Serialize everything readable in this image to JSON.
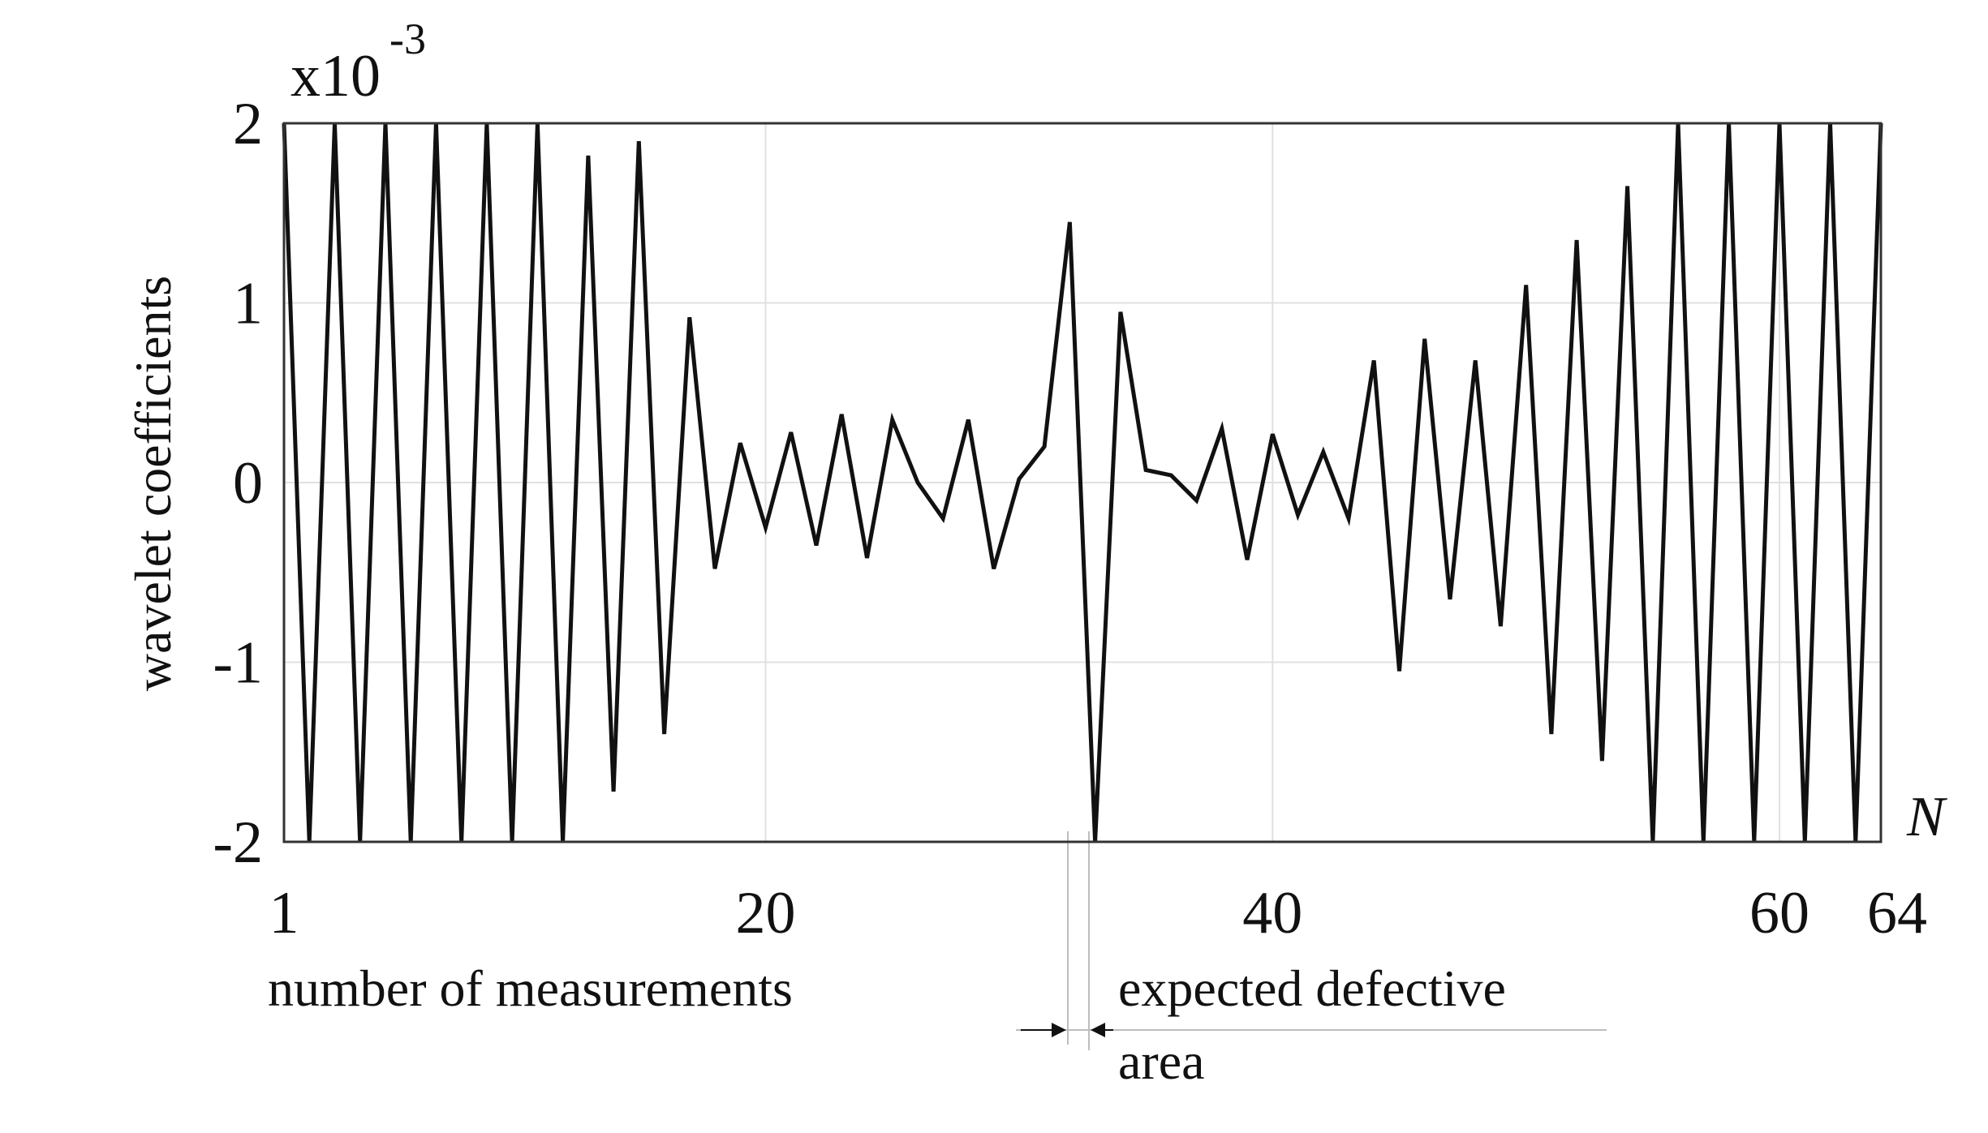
{
  "chart_data": {
    "type": "line",
    "scale_label": "x10",
    "scale_exponent": "-3",
    "ylabel": "wavelet coefficients",
    "xlabel": "number of measurements",
    "x_axis_symbol": "N",
    "annotation": [
      "expected defective",
      "area"
    ],
    "xlim": [
      1,
      64
    ],
    "ylim": [
      -2,
      2
    ],
    "x_ticks": [
      "1",
      "20",
      "40",
      "60",
      "64"
    ],
    "y_ticks": [
      "2",
      "1",
      "0",
      "-1",
      "-2"
    ],
    "grid": true,
    "series_color": "#111111",
    "series": [
      {
        "x": [
          1,
          2,
          3,
          4,
          5,
          6,
          7,
          8,
          9,
          10,
          11,
          12,
          13,
          14,
          15,
          16,
          17,
          18,
          19,
          20,
          21,
          22,
          23,
          24,
          25,
          26,
          27,
          28,
          29,
          30,
          31,
          32,
          33,
          34,
          35,
          36,
          37,
          38,
          39,
          40,
          41,
          42,
          43,
          44,
          45,
          46,
          47,
          48,
          49,
          50,
          51,
          52,
          53,
          54,
          55,
          56,
          57,
          58,
          59,
          60,
          61,
          62,
          63,
          64
        ],
        "values": [
          2,
          -2,
          2,
          -2,
          2,
          -2,
          2,
          -2,
          2,
          -2,
          2,
          -2,
          1.82,
          -1.72,
          1.9,
          -1.4,
          0.92,
          -0.48,
          0.22,
          -0.25,
          0.28,
          -0.35,
          0.38,
          -0.42,
          0.35,
          0.0,
          -0.2,
          0.35,
          -0.48,
          0.02,
          0.2,
          1.45,
          -2,
          0.95,
          0.07,
          0.04,
          -0.1,
          0.3,
          -0.43,
          0.27,
          -0.18,
          0.17,
          -0.2,
          0.68,
          -1.05,
          0.8,
          -0.65,
          0.68,
          -0.8,
          1.1,
          -1.4,
          1.35,
          -1.55,
          1.65,
          -2,
          2,
          -2,
          2,
          -2,
          2,
          -2,
          2,
          -2,
          2
        ]
      }
    ]
  }
}
